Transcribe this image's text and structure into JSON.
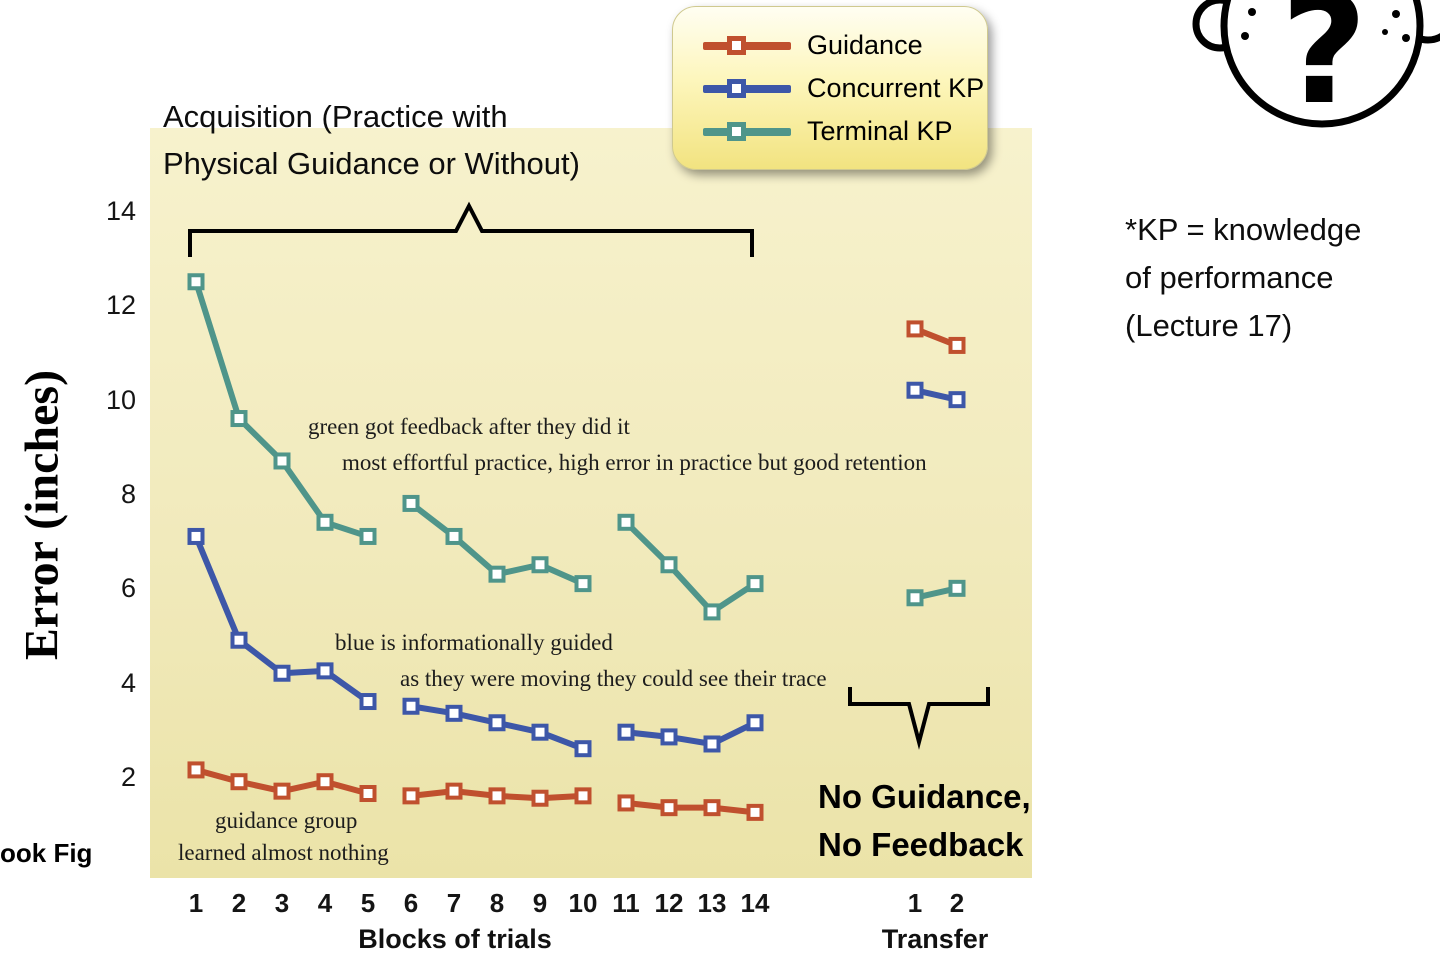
{
  "slide": {
    "acquisition_title": {
      "line1": "Acquisition (Practice with",
      "line2": "Physical Guidance or Without)"
    },
    "kp_note": {
      "line1": "*KP = knowledge",
      "line2": "of performance",
      "line3": "(Lecture 17)"
    },
    "no_guidance": {
      "line1": "No Guidance,",
      "line2": "No Feedback"
    },
    "corner_text": "ook Fig",
    "annotations": {
      "green_note_1": "green got feedback after they did it",
      "green_note_2": "most effortful practice, high error in practice but good retention",
      "blue_note_1": "blue is informationally guided",
      "blue_note_2": "as they were moving they could see their trace",
      "guidance_note_1": "guidance group",
      "guidance_note_2": "learned almost nothing"
    },
    "question_mark": "?"
  },
  "legend": {
    "items": [
      {
        "label": "Guidance",
        "color": "#c0502e"
      },
      {
        "label": "Concurrent KP",
        "color": "#3d57a8"
      },
      {
        "label": "Terminal KP",
        "color": "#4f958a"
      }
    ]
  },
  "chart_data": {
    "type": "line",
    "title": "Acquisition (Practice with Physical Guidance or Without)",
    "xlabel": "Blocks of trials",
    "xlabel_transfer": "Transfer",
    "ylabel": "Error (inches)",
    "ylim": [
      0,
      15
    ],
    "yticks": [
      2,
      4,
      6,
      8,
      10,
      12,
      14
    ],
    "x_blocks": [
      1,
      2,
      3,
      4,
      5,
      6,
      7,
      8,
      9,
      10,
      11,
      12,
      13,
      14
    ],
    "x_transfer": [
      1,
      2
    ],
    "block_segments": [
      [
        1,
        5
      ],
      [
        6,
        10
      ],
      [
        11,
        14
      ]
    ],
    "grid": false,
    "legend_position": "top-center",
    "series": [
      {
        "name": "Guidance",
        "color": "#c0502e",
        "blocks": [
          2.15,
          1.9,
          1.7,
          1.9,
          1.65,
          1.6,
          1.7,
          1.6,
          1.55,
          1.6,
          1.45,
          1.35,
          1.35,
          1.25
        ],
        "transfer": [
          11.5,
          11.15
        ]
      },
      {
        "name": "Concurrent KP",
        "color": "#3d57a8",
        "blocks": [
          7.1,
          4.9,
          4.2,
          4.25,
          3.6,
          3.5,
          3.35,
          3.15,
          2.95,
          2.6,
          2.95,
          2.85,
          2.7,
          3.15
        ],
        "transfer": [
          10.2,
          10.0
        ]
      },
      {
        "name": "Terminal KP",
        "color": "#4f958a",
        "blocks": [
          12.5,
          9.6,
          8.7,
          7.4,
          7.1,
          7.8,
          7.1,
          6.3,
          6.5,
          6.1,
          7.4,
          6.5,
          5.5,
          6.1
        ],
        "transfer": [
          5.8,
          6.0
        ]
      }
    ]
  }
}
